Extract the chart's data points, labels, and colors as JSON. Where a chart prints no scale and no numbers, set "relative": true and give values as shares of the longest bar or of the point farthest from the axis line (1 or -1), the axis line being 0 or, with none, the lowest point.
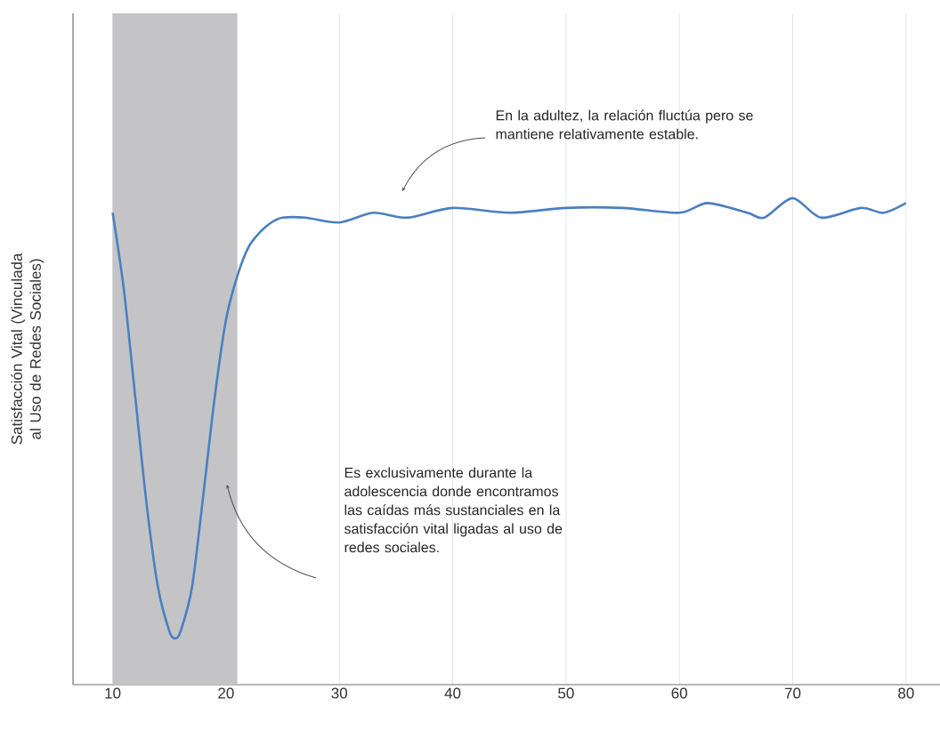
{
  "chart_data": {
    "type": "line",
    "relative": true,
    "ylabel": "Satisfacción Vital (Vinculada al Uso de Redes Sociales)",
    "x": [
      10,
      11,
      12,
      13,
      14,
      15,
      15.5,
      16,
      17,
      18,
      19,
      20,
      21,
      22,
      23,
      24,
      25,
      27,
      30,
      33,
      36,
      40,
      45,
      50,
      55,
      60,
      62.5,
      66,
      67.5,
      70,
      72.5,
      76,
      78,
      80
    ],
    "series": [
      {
        "color": "#4a7fc1",
        "values": [
          0.97,
          0.81,
          0.59,
          0.37,
          0.2,
          0.11,
          0.095,
          0.11,
          0.2,
          0.39,
          0.59,
          0.75,
          0.84,
          0.9,
          0.93,
          0.95,
          0.96,
          0.96,
          0.95,
          0.97,
          0.96,
          0.98,
          0.97,
          0.98,
          0.98,
          0.97,
          0.99,
          0.97,
          0.96,
          1,
          0.96,
          0.98,
          0.97,
          0.99
        ]
      }
    ],
    "xlim": [
      6.5,
      83
    ],
    "xticks": [
      10,
      20,
      30,
      40,
      50,
      60,
      70,
      80
    ],
    "grid": "x",
    "marker": "none",
    "line_style": "solid",
    "bands": [
      {
        "axis": "x",
        "from": 10,
        "to": 21,
        "color": "#c4c4c6"
      }
    ],
    "annotations": [
      "En la adultez, la relación fluctúa pero se mantiene relativamente estable.",
      "Es exclusivamente durante la adolescencia donde encontramos las caídas más sustanciales en la satisfacción vital ligadas al uso de redes sociales."
    ]
  }
}
